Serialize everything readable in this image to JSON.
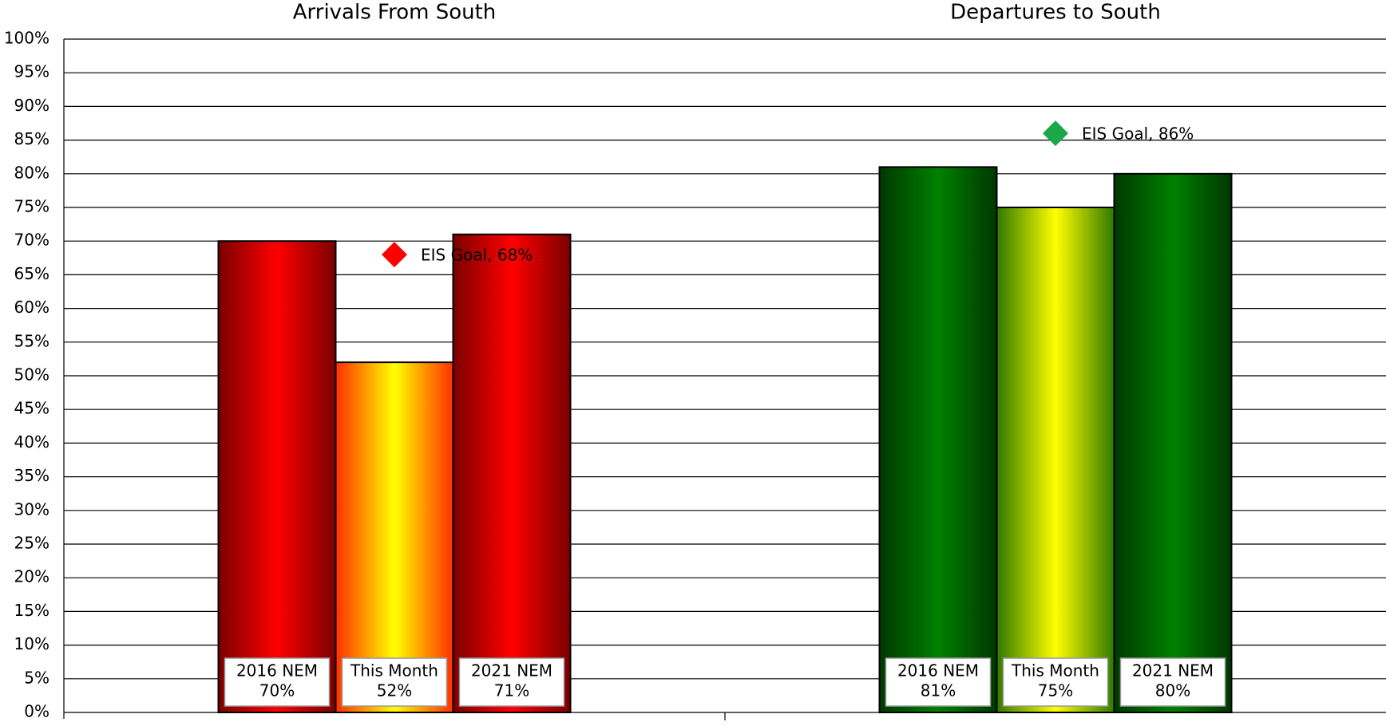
{
  "chart_data": {
    "type": "bar",
    "categories": [
      "Arrivals From South",
      "Departures to South"
    ],
    "series": [
      {
        "name": "2016 NEM",
        "values": [
          70,
          81
        ],
        "value_labels": [
          "70%",
          "81%"
        ],
        "colors": [
          "#ff0000",
          "#008000"
        ],
        "edge_colors": [
          "#7a0000",
          "#003800"
        ]
      },
      {
        "name": "This Month",
        "values": [
          52,
          75
        ],
        "value_labels": [
          "52%",
          "75%"
        ],
        "colors": [
          "#ffff00",
          "#ffff00"
        ],
        "edge_colors": [
          "#ff3000",
          "#2f7a00"
        ]
      },
      {
        "name": "2021 NEM",
        "values": [
          71,
          80
        ],
        "value_labels": [
          "71%",
          "80%"
        ],
        "colors": [
          "#ff0000",
          "#008000"
        ],
        "edge_colors": [
          "#7a0000",
          "#003800"
        ]
      }
    ],
    "goal": {
      "values": [
        68,
        86
      ],
      "value_labels": [
        "EIS Goal, 68%",
        "EIS Goal, 86%"
      ],
      "colors": [
        "#ff0000",
        "#1aa84a"
      ]
    },
    "ylim": [
      0,
      100
    ],
    "yticks": [
      {
        "value": 0,
        "label": "0%"
      },
      {
        "value": 5,
        "label": "5%"
      },
      {
        "value": 10,
        "label": "10%"
      },
      {
        "value": 15,
        "label": "15%"
      },
      {
        "value": 20,
        "label": "20%"
      },
      {
        "value": 25,
        "label": "25%"
      },
      {
        "value": 30,
        "label": "30%"
      },
      {
        "value": 35,
        "label": "35%"
      },
      {
        "value": 40,
        "label": "40%"
      },
      {
        "value": 45,
        "label": "45%"
      },
      {
        "value": 50,
        "label": "50%"
      },
      {
        "value": 55,
        "label": "55%"
      },
      {
        "value": 60,
        "label": "60%"
      },
      {
        "value": 65,
        "label": "65%"
      },
      {
        "value": 70,
        "label": "70%"
      },
      {
        "value": 75,
        "label": "75%"
      },
      {
        "value": 80,
        "label": "80%"
      },
      {
        "value": 85,
        "label": "85%"
      },
      {
        "value": 90,
        "label": "90%"
      },
      {
        "value": 95,
        "label": "95%"
      },
      {
        "value": 100,
        "label": "100%"
      }
    ],
    "grid": true
  }
}
